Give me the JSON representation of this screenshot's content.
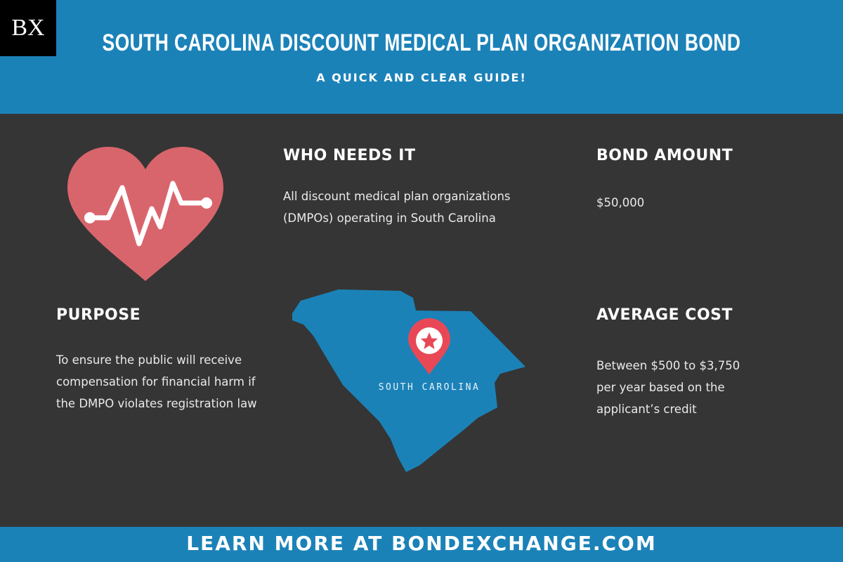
{
  "brand": {
    "logo": "BX"
  },
  "header": {
    "title": "SOUTH CAROLINA DISCOUNT MEDICAL PLAN ORGANIZATION BOND",
    "subtitle": "A QUICK AND CLEAR GUIDE!"
  },
  "sections": {
    "who": {
      "heading": "WHO NEEDS IT",
      "lines": [
        "All discount medical plan organizations",
        "(DMPOs) operating in South Carolina"
      ]
    },
    "amount": {
      "heading": "BOND AMOUNT",
      "lines": [
        "$50,000"
      ]
    },
    "purpose": {
      "heading": "PURPOSE",
      "lines": [
        "To ensure the public will receive",
        "compensation for financial harm if",
        "the DMPO violates registration law"
      ]
    },
    "cost": {
      "heading": "AVERAGE COST",
      "lines": [
        "Between $500 to $3,750",
        "per year based on the",
        "applicant’s credit"
      ]
    }
  },
  "map": {
    "label": "SOUTH CAROLINA",
    "icon": "map-pin-star-icon"
  },
  "heart": {
    "icon": "heart-pulse-icon"
  },
  "footer": {
    "text": "LEARN MORE AT BONDEXCHANGE.COM"
  },
  "colors": {
    "blue": "#1b82b8",
    "background": "#353535",
    "heart": "#d9656c",
    "pin": "#e84856"
  }
}
